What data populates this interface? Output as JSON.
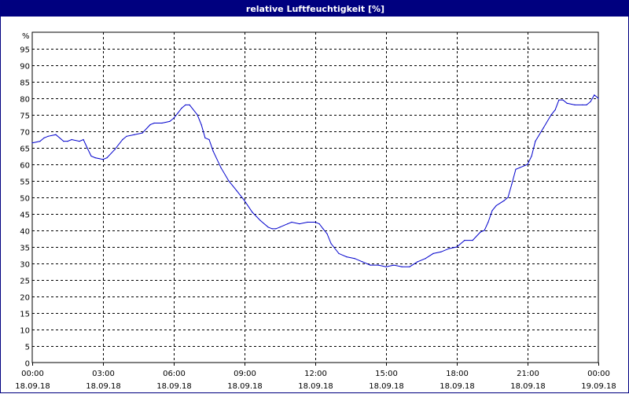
{
  "window": {
    "title": "relative Luftfeuchtigkeit [%]"
  },
  "colors": {
    "titlebar": "#00007f",
    "line": "#0000cc",
    "grid": "#000000",
    "background": "#ffffff"
  },
  "chart_data": {
    "type": "line",
    "title": "relative Luftfeuchtigkeit [%]",
    "ylabel": "%",
    "ylim": [
      0,
      100
    ],
    "y_ticks": [
      0,
      5,
      10,
      15,
      20,
      25,
      30,
      35,
      40,
      45,
      50,
      55,
      60,
      65,
      70,
      75,
      80,
      85,
      90,
      95
    ],
    "x_range_hours": [
      0,
      24
    ],
    "x_ticks": [
      {
        "time": "00:00",
        "date": "18.09.18",
        "hour": 0
      },
      {
        "time": "03:00",
        "date": "18.09.18",
        "hour": 3
      },
      {
        "time": "06:00",
        "date": "18.09.18",
        "hour": 6
      },
      {
        "time": "09:00",
        "date": "18.09.18",
        "hour": 9
      },
      {
        "time": "12:00",
        "date": "18.09.18",
        "hour": 12
      },
      {
        "time": "15:00",
        "date": "18.09.18",
        "hour": 15
      },
      {
        "time": "18:00",
        "date": "18.09.18",
        "hour": 18
      },
      {
        "time": "21:00",
        "date": "18.09.18",
        "hour": 21
      },
      {
        "time": "00:00",
        "date": "19.09.18",
        "hour": 24
      }
    ],
    "grid": true,
    "series": [
      {
        "x": [
          0,
          0.33,
          0.5,
          0.67,
          1.0,
          1.33,
          1.5,
          1.67,
          2.0,
          2.17,
          2.33,
          2.5,
          2.67,
          3.0,
          3.17,
          3.5,
          3.83,
          4.0,
          4.33,
          4.67,
          5.0,
          5.17,
          5.5,
          5.83,
          6.0,
          6.17,
          6.33,
          6.5,
          6.67,
          7.0,
          7.17,
          7.33,
          7.5,
          7.67,
          8.0,
          8.33,
          8.67,
          9.0,
          9.33,
          9.67,
          10.0,
          10.17,
          10.33,
          10.5,
          10.83,
          11.0,
          11.33,
          11.67,
          12.0,
          12.17,
          12.33,
          12.5,
          12.67,
          13.0,
          13.33,
          13.67,
          14.0,
          14.33,
          14.67,
          15.0,
          15.33,
          15.67,
          16.0,
          16.33,
          16.67,
          17.0,
          17.33,
          17.67,
          18.0,
          18.33,
          18.67,
          19.0,
          19.17,
          19.33,
          19.5,
          19.67,
          20.0,
          20.17,
          20.33,
          20.5,
          20.67,
          21.0,
          21.17,
          21.33,
          21.67,
          22.0,
          22.17,
          22.33,
          22.5,
          22.67,
          23.0,
          23.33,
          23.5,
          23.67,
          23.83,
          24.0
        ],
        "y": [
          66.5,
          67,
          68,
          68.5,
          69,
          67,
          67,
          67.5,
          67,
          67.5,
          65,
          62.5,
          62,
          61.5,
          62,
          64.5,
          67.5,
          68.5,
          69,
          69.5,
          72,
          72.5,
          72.5,
          73,
          74,
          75.5,
          77,
          78,
          78,
          75,
          72,
          68,
          67.5,
          64,
          59,
          55,
          52,
          49,
          45.5,
          43,
          41,
          40.5,
          40.5,
          41,
          42,
          42.5,
          42,
          42.5,
          42.5,
          42,
          40.5,
          39,
          36,
          33,
          32,
          31.5,
          30.5,
          29.5,
          29.5,
          29,
          29.5,
          29,
          29,
          30.5,
          31.5,
          33,
          33.5,
          34.5,
          35,
          37,
          37,
          39.5,
          40,
          42.5,
          46,
          47.5,
          49,
          50,
          54,
          58.5,
          59,
          60,
          62.5,
          67,
          71,
          75,
          76.5,
          79.5,
          79.5,
          78.5,
          78,
          78,
          78,
          79,
          81,
          80
        ]
      }
    ]
  }
}
